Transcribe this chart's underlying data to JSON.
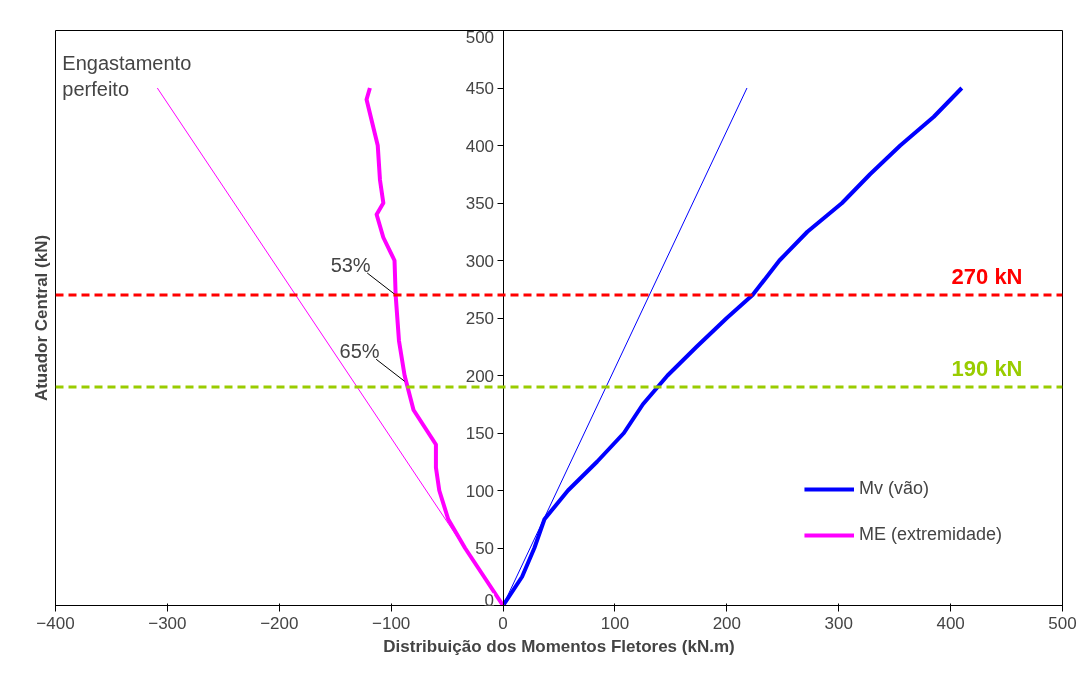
{
  "chart_data": {
    "type": "line",
    "xlabel": "Distribuição dos Momentos Fletores (kN.m)",
    "ylabel": "Atuador Central (kN)",
    "xlim": [
      -400,
      500
    ],
    "ylim": [
      0,
      500
    ],
    "xticks": [
      -400,
      -300,
      -200,
      -100,
      0,
      100,
      200,
      300,
      400,
      500
    ],
    "yticks": [
      0,
      50,
      100,
      150,
      200,
      250,
      300,
      350,
      400,
      450,
      500
    ],
    "grid": false,
    "legend": "bottom right",
    "line_style": "solid",
    "marker": "none",
    "series": [
      {
        "name": "Mv (vão)",
        "color": "#0000ff",
        "x": [
          0,
          17,
          28,
          37,
          58,
          84,
          108,
          125,
          147,
          173,
          200,
          223,
          247,
          272,
          303,
          328,
          355,
          385,
          410
        ],
        "values": [
          0,
          25,
          50,
          75,
          100,
          125,
          150,
          175,
          200,
          225,
          250,
          270,
          300,
          325,
          350,
          375,
          400,
          425,
          450
        ]
      },
      {
        "name": "ME (extremidade)",
        "color": "#ff00ff",
        "x": [
          0,
          -17,
          -34,
          -49,
          -57,
          -60,
          -60,
          -80,
          -88,
          -93,
          -96,
          -97,
          -107,
          -113,
          -107,
          -110,
          -112,
          -122,
          -119
        ],
        "values": [
          0,
          25,
          50,
          75,
          100,
          120,
          140,
          170,
          200,
          230,
          270,
          300,
          320,
          340,
          350,
          370,
          400,
          440,
          450
        ]
      },
      {
        "color": "#0000ff",
        "x": [
          0,
          218
        ],
        "values": [
          0,
          450
        ]
      },
      {
        "color": "#ff00ff",
        "x": [
          0,
          -309
        ],
        "values": [
          0,
          450
        ]
      }
    ],
    "ref_lines": [
      {
        "axis": "y",
        "value": 270,
        "label": "270 kN",
        "color": "#ff0000",
        "line_style": "dashed"
      },
      {
        "axis": "y",
        "value": 190,
        "label": "190 kN",
        "color": "#99cc00",
        "line_style": "dashed"
      }
    ],
    "annotations": [
      {
        "text": "Engastamento\nperfeito",
        "x": -309,
        "y": 450
      },
      {
        "text": "53%",
        "x": -96,
        "y": 270
      },
      {
        "text": "65%",
        "x": -88,
        "y": 195
      }
    ]
  }
}
